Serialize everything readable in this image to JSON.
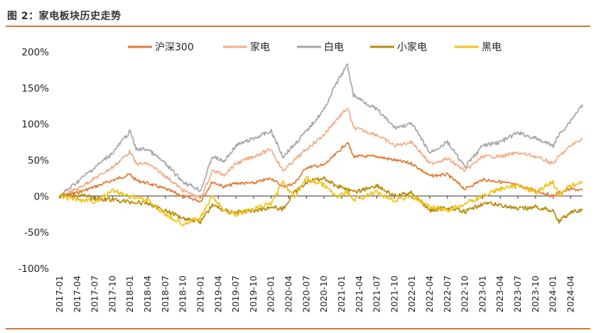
{
  "figure": {
    "title": "图 2：家电板块历史走势"
  },
  "colors": {
    "rule": "#d9783a"
  },
  "chart_data": {
    "type": "line",
    "title": "",
    "xlabel": "",
    "ylabel": "",
    "ylim": [
      -1.0,
      2.0
    ],
    "yticks": [
      2.0,
      1.5,
      1.0,
      0.5,
      0.0,
      -0.5,
      -1.0
    ],
    "ytick_labels": [
      "200%",
      "150%",
      "100%",
      "50%",
      "0%",
      "-50%",
      "-100%"
    ],
    "xticks": [
      "2017-01",
      "2017-04",
      "2017-07",
      "2017-10",
      "2018-01",
      "2018-04",
      "2018-07",
      "2018-10",
      "2019-01",
      "2019-04",
      "2019-07",
      "2019-10",
      "2020-01",
      "2020-04",
      "2020-07",
      "2020-10",
      "2021-01",
      "2021-04",
      "2021-07",
      "2021-10",
      "2022-01",
      "2022-04",
      "2022-07",
      "2022-10",
      "2023-01",
      "2023-04",
      "2023-07",
      "2023-10",
      "2024-01",
      "2024-04"
    ],
    "x_range": [
      "2017-01",
      "2024-06"
    ],
    "grid": false,
    "legend_position": "top",
    "series": [
      {
        "name": "沪深300",
        "color": "#e07a35",
        "points": [
          [
            "2017-01",
            0.0
          ],
          [
            "2017-04",
            0.05
          ],
          [
            "2017-07",
            0.13
          ],
          [
            "2017-10",
            0.22
          ],
          [
            "2018-01",
            0.3
          ],
          [
            "2018-02",
            0.22
          ],
          [
            "2018-04",
            0.18
          ],
          [
            "2018-07",
            0.1
          ],
          [
            "2018-10",
            0.0
          ],
          [
            "2019-01",
            -0.07
          ],
          [
            "2019-03",
            0.2
          ],
          [
            "2019-05",
            0.13
          ],
          [
            "2019-07",
            0.18
          ],
          [
            "2019-10",
            0.18
          ],
          [
            "2020-01",
            0.25
          ],
          [
            "2020-03",
            0.13
          ],
          [
            "2020-05",
            0.18
          ],
          [
            "2020-07",
            0.4
          ],
          [
            "2020-10",
            0.43
          ],
          [
            "2020-12",
            0.58
          ],
          [
            "2021-02",
            0.75
          ],
          [
            "2021-03",
            0.55
          ],
          [
            "2021-07",
            0.55
          ],
          [
            "2021-10",
            0.5
          ],
          [
            "2022-01",
            0.45
          ],
          [
            "2022-04",
            0.28
          ],
          [
            "2022-07",
            0.3
          ],
          [
            "2022-10",
            0.1
          ],
          [
            "2023-01",
            0.23
          ],
          [
            "2023-04",
            0.2
          ],
          [
            "2023-07",
            0.15
          ],
          [
            "2023-10",
            0.08
          ],
          [
            "2024-01",
            0.0
          ],
          [
            "2024-02",
            0.05
          ],
          [
            "2024-04",
            0.1
          ],
          [
            "2024-06",
            0.08
          ]
        ]
      },
      {
        "name": "家电",
        "color": "#f2ad86",
        "points": [
          [
            "2017-01",
            0.0
          ],
          [
            "2017-04",
            0.1
          ],
          [
            "2017-07",
            0.25
          ],
          [
            "2017-10",
            0.4
          ],
          [
            "2018-01",
            0.62
          ],
          [
            "2018-02",
            0.45
          ],
          [
            "2018-04",
            0.45
          ],
          [
            "2018-07",
            0.28
          ],
          [
            "2018-10",
            0.08
          ],
          [
            "2019-01",
            -0.03
          ],
          [
            "2019-03",
            0.35
          ],
          [
            "2019-05",
            0.3
          ],
          [
            "2019-07",
            0.45
          ],
          [
            "2019-10",
            0.55
          ],
          [
            "2020-01",
            0.65
          ],
          [
            "2020-03",
            0.35
          ],
          [
            "2020-05",
            0.5
          ],
          [
            "2020-07",
            0.65
          ],
          [
            "2020-10",
            0.85
          ],
          [
            "2020-12",
            1.05
          ],
          [
            "2021-02",
            1.22
          ],
          [
            "2021-03",
            0.95
          ],
          [
            "2021-07",
            0.85
          ],
          [
            "2021-10",
            0.7
          ],
          [
            "2022-01",
            0.75
          ],
          [
            "2022-04",
            0.45
          ],
          [
            "2022-07",
            0.52
          ],
          [
            "2022-10",
            0.35
          ],
          [
            "2023-01",
            0.55
          ],
          [
            "2023-04",
            0.55
          ],
          [
            "2023-07",
            0.6
          ],
          [
            "2023-10",
            0.55
          ],
          [
            "2024-01",
            0.45
          ],
          [
            "2024-02",
            0.55
          ],
          [
            "2024-04",
            0.7
          ],
          [
            "2024-06",
            0.8
          ]
        ]
      },
      {
        "name": "白电",
        "color": "#a6a6a6",
        "points": [
          [
            "2017-01",
            0.0
          ],
          [
            "2017-04",
            0.2
          ],
          [
            "2017-07",
            0.4
          ],
          [
            "2017-10",
            0.6
          ],
          [
            "2018-01",
            0.9
          ],
          [
            "2018-02",
            0.65
          ],
          [
            "2018-04",
            0.65
          ],
          [
            "2018-07",
            0.45
          ],
          [
            "2018-10",
            0.2
          ],
          [
            "2019-01",
            0.08
          ],
          [
            "2019-03",
            0.55
          ],
          [
            "2019-05",
            0.48
          ],
          [
            "2019-07",
            0.7
          ],
          [
            "2019-10",
            0.8
          ],
          [
            "2020-01",
            0.9
          ],
          [
            "2020-03",
            0.55
          ],
          [
            "2020-05",
            0.72
          ],
          [
            "2020-07",
            0.9
          ],
          [
            "2020-10",
            1.2
          ],
          [
            "2020-12",
            1.55
          ],
          [
            "2021-02",
            1.82
          ],
          [
            "2021-03",
            1.4
          ],
          [
            "2021-07",
            1.2
          ],
          [
            "2021-10",
            0.95
          ],
          [
            "2022-01",
            1.0
          ],
          [
            "2022-04",
            0.6
          ],
          [
            "2022-07",
            0.75
          ],
          [
            "2022-10",
            0.4
          ],
          [
            "2023-01",
            0.7
          ],
          [
            "2023-04",
            0.75
          ],
          [
            "2023-07",
            0.88
          ],
          [
            "2023-10",
            0.8
          ],
          [
            "2024-01",
            0.7
          ],
          [
            "2024-02",
            0.85
          ],
          [
            "2024-04",
            1.05
          ],
          [
            "2024-06",
            1.27
          ]
        ]
      },
      {
        "name": "小家电",
        "color": "#b88a0a",
        "points": [
          [
            "2017-01",
            0.0
          ],
          [
            "2017-04",
            0.02
          ],
          [
            "2017-07",
            -0.03
          ],
          [
            "2017-10",
            -0.05
          ],
          [
            "2018-01",
            -0.08
          ],
          [
            "2018-04",
            -0.1
          ],
          [
            "2018-07",
            -0.2
          ],
          [
            "2018-10",
            -0.3
          ],
          [
            "2019-01",
            -0.35
          ],
          [
            "2019-03",
            -0.12
          ],
          [
            "2019-05",
            -0.2
          ],
          [
            "2019-07",
            -0.22
          ],
          [
            "2019-10",
            -0.2
          ],
          [
            "2020-01",
            -0.15
          ],
          [
            "2020-03",
            -0.18
          ],
          [
            "2020-05",
            0.05
          ],
          [
            "2020-07",
            0.2
          ],
          [
            "2020-10",
            0.25
          ],
          [
            "2020-12",
            0.15
          ],
          [
            "2021-02",
            0.1
          ],
          [
            "2021-03",
            0.05
          ],
          [
            "2021-07",
            0.15
          ],
          [
            "2021-10",
            0.0
          ],
          [
            "2022-01",
            0.05
          ],
          [
            "2022-04",
            -0.2
          ],
          [
            "2022-07",
            -0.15
          ],
          [
            "2022-10",
            -0.22
          ],
          [
            "2023-01",
            -0.1
          ],
          [
            "2023-04",
            -0.12
          ],
          [
            "2023-07",
            -0.18
          ],
          [
            "2023-10",
            -0.15
          ],
          [
            "2024-01",
            -0.2
          ],
          [
            "2024-02",
            -0.35
          ],
          [
            "2024-04",
            -0.22
          ],
          [
            "2024-06",
            -0.2
          ]
        ]
      },
      {
        "name": "黑电",
        "color": "#f2c21b",
        "points": [
          [
            "2017-01",
            0.0
          ],
          [
            "2017-04",
            -0.05
          ],
          [
            "2017-07",
            -0.08
          ],
          [
            "2017-10",
            0.08
          ],
          [
            "2018-01",
            0.0
          ],
          [
            "2018-04",
            -0.05
          ],
          [
            "2018-07",
            -0.25
          ],
          [
            "2018-10",
            -0.38
          ],
          [
            "2019-01",
            -0.3
          ],
          [
            "2019-03",
            0.0
          ],
          [
            "2019-05",
            -0.2
          ],
          [
            "2019-07",
            -0.25
          ],
          [
            "2019-10",
            -0.18
          ],
          [
            "2020-01",
            -0.1
          ],
          [
            "2020-03",
            0.2
          ],
          [
            "2020-05",
            -0.02
          ],
          [
            "2020-07",
            0.25
          ],
          [
            "2020-10",
            0.15
          ],
          [
            "2020-12",
            0.0
          ],
          [
            "2021-02",
            0.05
          ],
          [
            "2021-03",
            -0.05
          ],
          [
            "2021-07",
            0.05
          ],
          [
            "2021-10",
            -0.05
          ],
          [
            "2022-01",
            0.0
          ],
          [
            "2022-04",
            -0.15
          ],
          [
            "2022-07",
            -0.2
          ],
          [
            "2022-10",
            -0.1
          ],
          [
            "2023-01",
            0.0
          ],
          [
            "2023-04",
            0.1
          ],
          [
            "2023-07",
            0.15
          ],
          [
            "2023-10",
            0.05
          ],
          [
            "2024-01",
            0.2
          ],
          [
            "2024-02",
            0.0
          ],
          [
            "2024-04",
            0.15
          ],
          [
            "2024-06",
            0.2
          ]
        ]
      }
    ]
  }
}
